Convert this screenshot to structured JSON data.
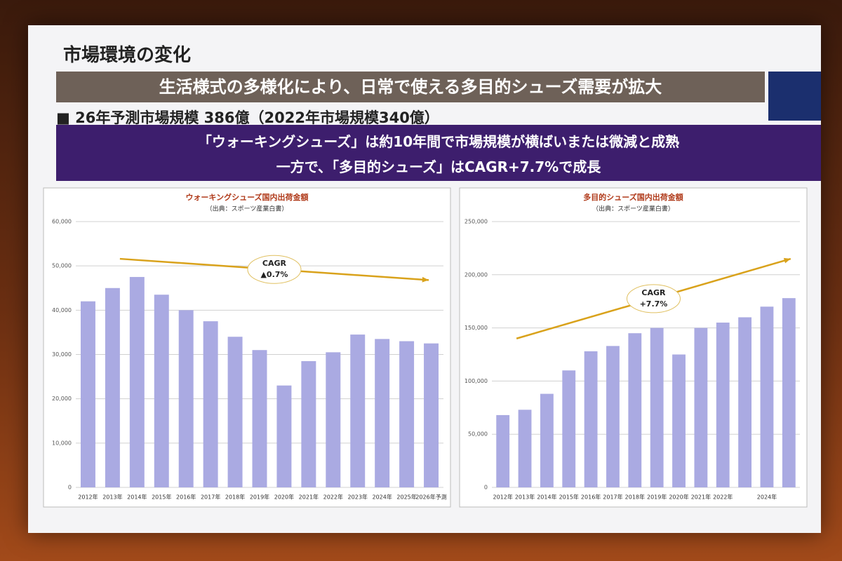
{
  "slide": {
    "title": "市場環境の変化",
    "headline": "生活様式の多様化により、日常で使える多目的シューズ需要が拡大",
    "bullet": "■ 26年予測市場規模 386億（2022年市場規模340億）",
    "lines": [
      "「ウォーキングシューズ」は約10年間で市場規模が横ばいまたは微減と成熟",
      "一方で、「多目的シューズ」はCAGR+7.7%で成長"
    ]
  },
  "chart_data": [
    {
      "type": "bar",
      "title": "ウォーキングシューズ国内出荷金額",
      "subtitle": "（出典：スポーツ産業白書）",
      "categories": [
        "2012年",
        "2013年",
        "2014年",
        "2015年",
        "2016年",
        "2017年",
        "2018年",
        "2019年",
        "2020年",
        "2021年",
        "2022年",
        "2023年",
        "2024年",
        "2025年",
        "2026年予測"
      ],
      "values": [
        42000,
        45000,
        47500,
        43500,
        40000,
        37500,
        34000,
        31000,
        23000,
        28500,
        30500,
        34500,
        33500,
        33000,
        32500
      ],
      "color": "#aaaae2",
      "ylim": [
        0,
        60000
      ],
      "yticks": [
        0,
        {
          "value": 10000,
          "label": "10,000"
        },
        {
          "value": 20000,
          "label": "20,000"
        },
        {
          "value": 30000,
          "label": "30,000"
        },
        {
          "value": 40000,
          "label": "40,000"
        },
        {
          "value": 50000,
          "label": "50,000"
        },
        {
          "value": 60000,
          "label": "60,000"
        }
      ],
      "grid": true,
      "annotations": [
        "CAGR",
        "▲0.7%"
      ]
    },
    {
      "type": "bar",
      "title": "多目的シューズ国内出荷金額",
      "subtitle": "（出典：スポーツ産業白書）",
      "categories": [
        "2012年",
        "2013年",
        "2014年",
        "2015年",
        "2016年",
        "2017年",
        "2018年",
        "2019年",
        "2020年",
        "2021年",
        "2022年",
        null,
        "2024年",
        null
      ],
      "values": [
        68000,
        73000,
        88000,
        110000,
        128000,
        133000,
        145000,
        150000,
        125000,
        150000,
        155000,
        160000,
        170000,
        178000
      ],
      "color": "#aaaae2",
      "ylim": [
        0,
        250000
      ],
      "yticks": [
        0,
        {
          "value": 50000,
          "label": "50,000"
        },
        {
          "value": 100000,
          "label": "100,000"
        },
        {
          "value": 150000,
          "label": "150,000"
        },
        {
          "value": 200000,
          "label": "200,000"
        },
        {
          "value": 250000,
          "label": "250,000"
        }
      ],
      "grid": true,
      "annotations": [
        "CAGR",
        "+7.7%"
      ]
    }
  ]
}
